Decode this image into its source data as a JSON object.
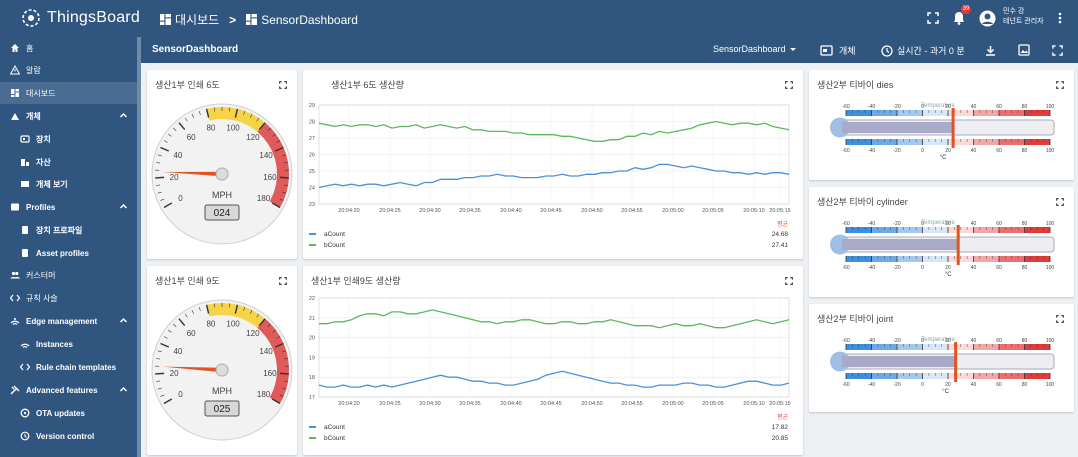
{
  "app": {
    "name": "ThingsBoard"
  },
  "breadcrumb": {
    "home": "대시보드",
    "separator": ">",
    "current": "SensorDashboard"
  },
  "header": {
    "notification_count": "39",
    "user_name": "민수 강",
    "user_role": "테넌트 관리자"
  },
  "sidebar": {
    "items": [
      {
        "label": "홈",
        "icon": "home-icon",
        "level": 0,
        "expandable": false
      },
      {
        "label": "알람",
        "icon": "warning-icon",
        "level": 0,
        "expandable": false
      },
      {
        "label": "대시보드",
        "icon": "dashboard-icon",
        "level": 0,
        "expandable": false,
        "selected": true
      },
      {
        "label": "개체",
        "icon": "entity-icon",
        "level": 0,
        "expandable": true
      },
      {
        "label": "장치",
        "icon": "device-icon",
        "level": 1,
        "expandable": false
      },
      {
        "label": "자산",
        "icon": "asset-icon",
        "level": 1,
        "expandable": false
      },
      {
        "label": "개체 보기",
        "icon": "entity-view-icon",
        "level": 1,
        "expandable": false
      },
      {
        "label": "Profiles",
        "icon": "profiles-icon",
        "level": 0,
        "expandable": true
      },
      {
        "label": "장치 프로파일",
        "icon": "device-profile-icon",
        "level": 1,
        "expandable": false
      },
      {
        "label": "Asset profiles",
        "icon": "asset-profile-icon",
        "level": 1,
        "expandable": false
      },
      {
        "label": "커스터머",
        "icon": "customers-icon",
        "level": 0,
        "expandable": false
      },
      {
        "label": "규칙 사슬",
        "icon": "rule-chain-icon",
        "level": 0,
        "expandable": false
      },
      {
        "label": "Edge management",
        "icon": "edge-icon",
        "level": 0,
        "expandable": true
      },
      {
        "label": "Instances",
        "icon": "instances-icon",
        "level": 1,
        "expandable": false
      },
      {
        "label": "Rule chain templates",
        "icon": "rule-chain-icon",
        "level": 1,
        "expandable": false
      },
      {
        "label": "Advanced features",
        "icon": "advanced-icon",
        "level": 0,
        "expandable": true
      },
      {
        "label": "OTA updates",
        "icon": "ota-icon",
        "level": 1,
        "expandable": false
      },
      {
        "label": "Version control",
        "icon": "history-icon",
        "level": 1,
        "expandable": false
      }
    ]
  },
  "dashboard_bar": {
    "title": "SensorDashboard",
    "state_select": "SensorDashboard",
    "entities_label": "개체",
    "timewindow": "실시간 - 과거 0 분"
  },
  "gauges": [
    {
      "title": "생산1부 인쇄 6도",
      "value": 24,
      "display": "024",
      "unit": "MPH",
      "ticks": [
        "0",
        "20",
        "40",
        "60",
        "80",
        "100",
        "120",
        "140",
        "160",
        "180"
      ]
    },
    {
      "title": "생산1부 인쇄 9도",
      "value": 25,
      "display": "025",
      "unit": "MPH",
      "ticks": [
        "0",
        "20",
        "40",
        "60",
        "80",
        "100",
        "120",
        "140",
        "160",
        "180"
      ]
    }
  ],
  "charts": [
    {
      "title": "생산1부 6도 생산량",
      "legend_header": "평균",
      "series": [
        {
          "name": "aCount",
          "color": "#4a90d9",
          "avg": "24.68"
        },
        {
          "name": "bCount",
          "color": "#5cb85c",
          "avg": "27.41"
        }
      ],
      "chart_data": {
        "type": "line",
        "ylim": [
          23,
          29
        ],
        "yticks": [
          "23",
          "24",
          "25",
          "26",
          "27",
          "28",
          "29"
        ],
        "xticks": [
          "20:04:20",
          "20:04:25",
          "20:04:30",
          "20:04:35",
          "20:04:40",
          "20:04:45",
          "20:04:50",
          "20:04:55",
          "20:05:00",
          "20:05:05",
          "20:05:10",
          "20:05:15"
        ],
        "series": [
          {
            "name": "aCount",
            "values": [
              24.0,
              24.1,
              24.2,
              24.1,
              24.2,
              24.1,
              24.2,
              24.2,
              24.1,
              24.2,
              24.3,
              24.2,
              24.1,
              24.3,
              24.3,
              24.5,
              24.5,
              24.5,
              24.6,
              24.6,
              24.7,
              24.7,
              24.8,
              24.7,
              24.7,
              24.6,
              24.6,
              24.6,
              24.7,
              24.7,
              24.8,
              24.7,
              24.7,
              24.8,
              24.8,
              24.9,
              24.9,
              25.0,
              25.0,
              25.2,
              25.1,
              25.2,
              25.4,
              25.4,
              25.3,
              25.2,
              25.3,
              25.2,
              25.1,
              25.0,
              25.0,
              24.9,
              24.9,
              24.8,
              24.9,
              24.8,
              24.9,
              24.9,
              24.8
            ]
          },
          {
            "name": "bCount",
            "values": [
              27.9,
              27.8,
              27.7,
              27.8,
              27.7,
              27.8,
              27.8,
              27.7,
              27.8,
              27.6,
              27.7,
              27.7,
              27.8,
              27.6,
              27.7,
              27.8,
              27.7,
              27.6,
              27.7,
              27.5,
              27.5,
              27.4,
              27.4,
              27.4,
              27.3,
              27.3,
              27.2,
              27.2,
              27.2,
              27.2,
              27.1,
              27.1,
              27.0,
              26.9,
              26.8,
              26.8,
              26.9,
              26.9,
              27.1,
              27.1,
              27.3,
              27.2,
              27.4,
              27.3,
              27.4,
              27.5,
              27.6,
              27.8,
              27.9,
              28.0,
              27.9,
              27.8,
              27.9,
              27.9,
              27.8,
              27.9,
              27.7,
              27.6,
              27.5
            ]
          }
        ]
      }
    },
    {
      "title": "생산1부 인쇄9도 생산량",
      "legend_header": "평균",
      "series": [
        {
          "name": "aCount",
          "color": "#4a90d9",
          "avg": "17.82"
        },
        {
          "name": "bCount",
          "color": "#5cb85c",
          "avg": "20.85"
        }
      ],
      "chart_data": {
        "type": "line",
        "ylim": [
          17,
          22
        ],
        "yticks": [
          "17",
          "18",
          "19",
          "20",
          "21",
          "22"
        ],
        "xticks": [
          "20:04:20",
          "20:04:25",
          "20:04:30",
          "20:04:35",
          "20:04:40",
          "20:04:45",
          "20:04:50",
          "20:04:55",
          "20:05:00",
          "20:05:05",
          "20:05:10",
          "20:05:15"
        ],
        "series": [
          {
            "name": "aCount",
            "values": [
              17.6,
              17.5,
              17.5,
              17.6,
              17.5,
              17.5,
              17.6,
              17.5,
              17.6,
              17.5,
              17.6,
              17.7,
              17.8,
              17.9,
              18.0,
              18.1,
              18.0,
              18.0,
              17.9,
              17.8,
              17.8,
              17.7,
              17.7,
              17.6,
              17.6,
              17.7,
              17.8,
              17.9,
              18.1,
              18.2,
              18.3,
              18.2,
              18.1,
              18.0,
              17.9,
              17.8,
              17.7,
              17.7,
              17.6,
              17.6,
              17.5,
              17.5,
              17.6,
              17.6,
              17.6,
              17.7,
              17.7,
              17.6,
              17.6,
              17.5,
              17.5,
              17.6,
              17.7,
              17.8,
              17.8,
              17.7,
              17.6,
              17.6,
              17.7
            ]
          },
          {
            "name": "bCount",
            "values": [
              20.7,
              20.7,
              20.8,
              20.8,
              20.9,
              21.1,
              21.2,
              21.2,
              21.1,
              21.3,
              21.3,
              21.2,
              21.2,
              21.3,
              21.4,
              21.3,
              21.2,
              21.1,
              21.0,
              20.9,
              20.8,
              20.8,
              20.7,
              20.8,
              20.8,
              20.9,
              20.9,
              20.8,
              20.7,
              20.7,
              20.8,
              20.8,
              20.7,
              20.7,
              20.8,
              20.8,
              20.9,
              20.8,
              20.7,
              20.6,
              20.6,
              20.6,
              20.5,
              20.6,
              20.7,
              20.6,
              20.6,
              20.7,
              20.6,
              20.5,
              20.5,
              20.6,
              20.7,
              20.8,
              20.9,
              20.8,
              20.7,
              20.8,
              20.9
            ]
          }
        ]
      }
    }
  ],
  "thermometers": [
    {
      "title": "생산2부 티바이 dies",
      "label": "Temperature",
      "unit": "°C",
      "min": -60,
      "max": 100,
      "value": 24,
      "ticks": [
        "-60",
        "-40",
        "-20",
        "0",
        "20",
        "40",
        "60",
        "80",
        "100"
      ]
    },
    {
      "title": "생산2부 티바이 cylinder",
      "label": "Temperature",
      "unit": "°C",
      "min": -60,
      "max": 100,
      "value": 28,
      "ticks": [
        "-60",
        "-40",
        "-20",
        "0",
        "20",
        "40",
        "60",
        "80",
        "100"
      ]
    },
    {
      "title": "생산2부 티바이 joint",
      "label": "Temperature",
      "unit": "°C",
      "min": -60,
      "max": 100,
      "value": 26,
      "ticks": [
        "-60",
        "-40",
        "-20",
        "0",
        "20",
        "40",
        "60",
        "80",
        "100"
      ]
    }
  ]
}
